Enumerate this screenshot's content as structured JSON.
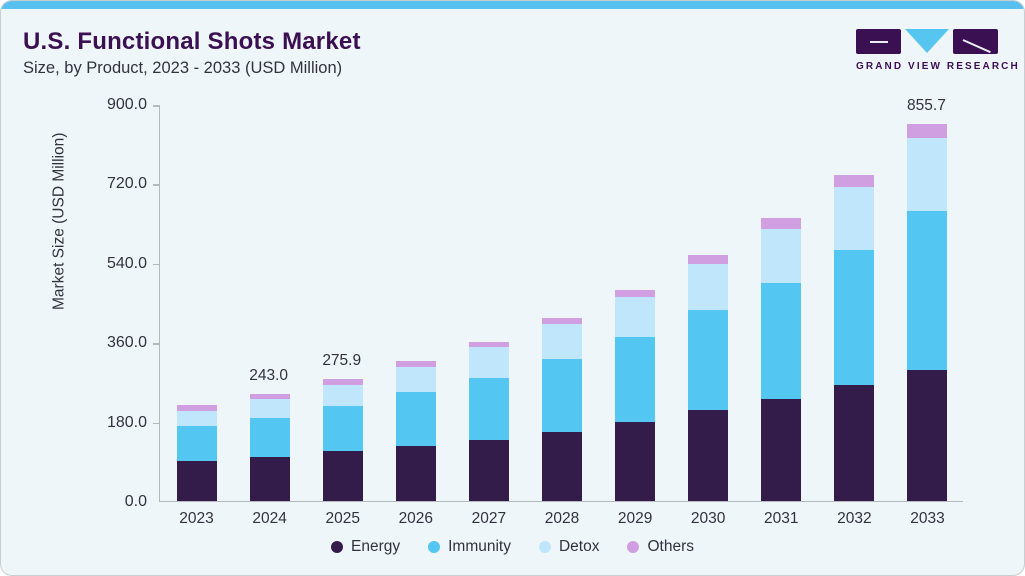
{
  "page": {
    "title": "U.S. Functional Shots Market",
    "subtitle": "Size, by Product, 2023 - 2033 (USD Million)"
  },
  "logo": {
    "text": "GRAND VIEW RESEARCH"
  },
  "colors": {
    "accent_bar": "#58c0ee",
    "card_background": "#eff6fa",
    "title_purple": "#3a1053",
    "body_text": "#32323d",
    "axis_gray": "#b4b9bd",
    "energy": "#331b4a",
    "immunity": "#54c6f2",
    "detox": "#bfe6fa",
    "others": "#cf9fe2"
  },
  "chart_data": {
    "type": "bar",
    "stacked": true,
    "title": "U.S. Functional Shots Market Size, by Product, 2023 - 2033 (USD Million)",
    "categories": [
      "2023",
      "2024",
      "2025",
      "2026",
      "2027",
      "2028",
      "2029",
      "2030",
      "2031",
      "2032",
      "2033"
    ],
    "series": [
      {
        "name": "Energy",
        "color": "#331b4a",
        "values": [
          90.5,
          100.0,
          113.0,
          125.0,
          138.5,
          157.5,
          180.0,
          206.0,
          231.0,
          262.0,
          297.5
        ]
      },
      {
        "name": "Immunity",
        "color": "#54c6f2",
        "values": [
          80.0,
          89.0,
          101.5,
          121.5,
          141.0,
          164.5,
          191.0,
          226.0,
          264.0,
          306.0,
          361.0
        ]
      },
      {
        "name": "Detox",
        "color": "#bfe6fa",
        "values": [
          34.0,
          42.8,
          49.3,
          57.5,
          70.5,
          79.5,
          91.0,
          104.5,
          122.5,
          144.0,
          164.5
        ]
      },
      {
        "name": "Others",
        "color": "#cf9fe2",
        "values": [
          13.0,
          11.2,
          12.1,
          13.0,
          11.5,
          14.5,
          17.5,
          22.0,
          24.0,
          26.5,
          32.7
        ]
      }
    ],
    "totals": [
      217.5,
      243.0,
      275.9,
      317.0,
      361.5,
      416.0,
      479.5,
      558.5,
      641.5,
      738.5,
      855.7
    ],
    "bar_labels": [
      "",
      "243.0",
      "275.9",
      "",
      "",
      "",
      "",
      "",
      "",
      "",
      "855.7"
    ],
    "xlabel": "",
    "ylabel": "Market Size (USD Million)",
    "ylim": [
      0,
      900
    ],
    "yticks": [
      0.0,
      180.0,
      360.0,
      540.0,
      720.0,
      900.0
    ],
    "ytick_labels": [
      "0.0",
      "180.0",
      "360.0",
      "540.0",
      "720.0",
      "900.0"
    ],
    "grid": false,
    "legend": [
      "Energy",
      "Immunity",
      "Detox",
      "Others"
    ],
    "legend_position": "bottom"
  }
}
